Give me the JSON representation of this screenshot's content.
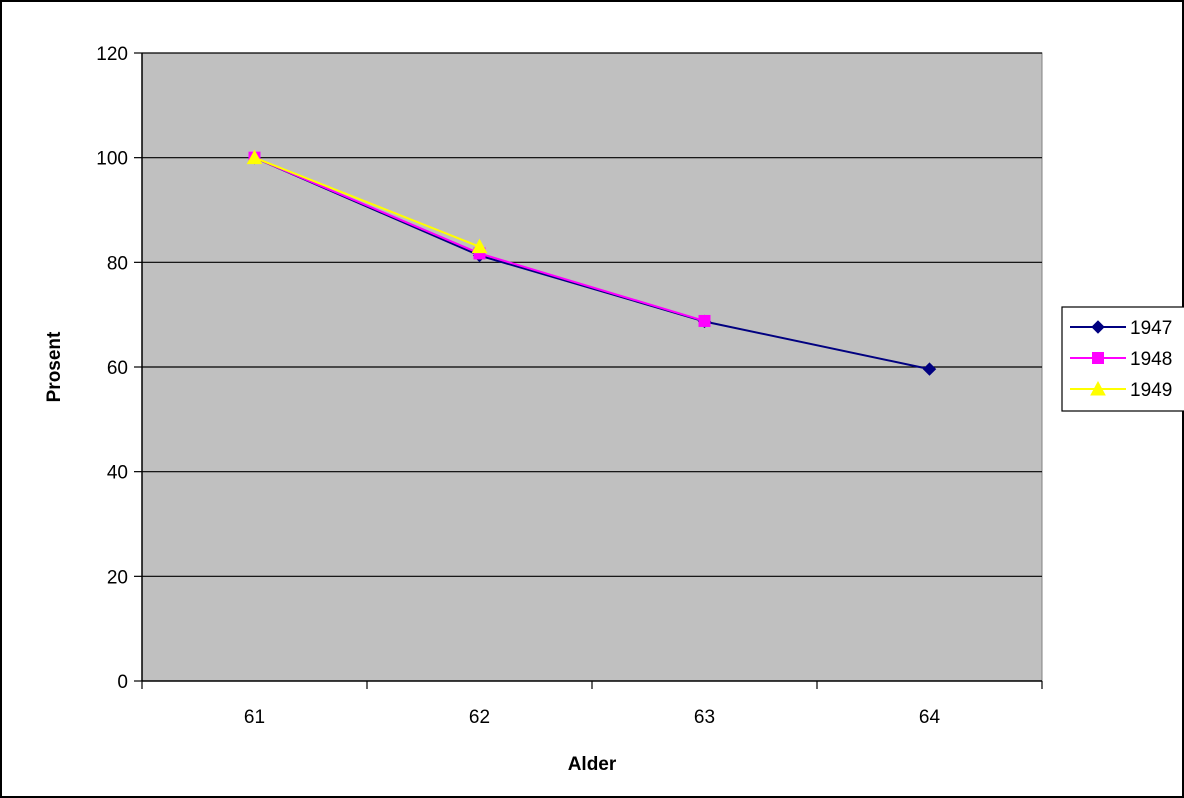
{
  "chart_data": {
    "type": "line",
    "title": "",
    "xlabel": "Alder",
    "ylabel": "Prosent",
    "categories": [
      "61",
      "62",
      "63",
      "64"
    ],
    "ylim": [
      0,
      120
    ],
    "yticks": [
      0,
      20,
      40,
      60,
      80,
      100,
      120
    ],
    "grid": true,
    "legend_position": "right",
    "plot_background": "#c0c0c0",
    "series": [
      {
        "name": "1947",
        "color": "#000080",
        "marker": "diamond",
        "values": [
          100,
          81.3,
          68.7,
          59.6
        ]
      },
      {
        "name": "1948",
        "color": "#ff00ff",
        "marker": "square",
        "values": [
          100,
          81.7,
          68.8,
          null
        ]
      },
      {
        "name": "1949",
        "color": "#ffff00",
        "marker": "triangle",
        "values": [
          100,
          83,
          null,
          null
        ]
      }
    ]
  }
}
